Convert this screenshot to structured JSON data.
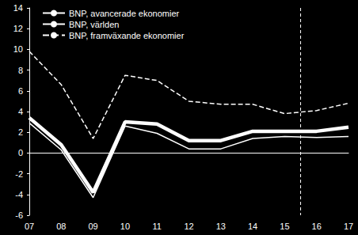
{
  "chart_data": {
    "type": "line",
    "categories": [
      "07",
      "08",
      "09",
      "10",
      "11",
      "12",
      "13",
      "14",
      "15",
      "16",
      "17"
    ],
    "series": [
      {
        "name": "BNP, avancerade ekonomier",
        "color": "#ffffff",
        "line_style": "thin",
        "values": [
          2.9,
          0.3,
          -4.3,
          2.6,
          1.9,
          0.4,
          0.4,
          1.4,
          1.6,
          1.5,
          1.6
        ]
      },
      {
        "name": "BNP, världen",
        "color": "#ffffff",
        "line_style": "thick",
        "values": [
          3.4,
          0.8,
          -3.8,
          3.0,
          2.8,
          1.2,
          1.2,
          2.1,
          2.1,
          2.1,
          2.5
        ]
      },
      {
        "name": "BNP, framväxande ekonomier",
        "color": "#ffffff",
        "line_style": "dashed",
        "values": [
          9.8,
          6.6,
          1.4,
          7.5,
          7.0,
          5.0,
          4.7,
          4.7,
          3.8,
          4.1,
          4.8
        ]
      }
    ],
    "ylim": [
      -6,
      14
    ],
    "yticks": [
      -6,
      -4,
      -2,
      0,
      2,
      4,
      6,
      8,
      10,
      12,
      14
    ],
    "grid": false,
    "legend": "top-left"
  }
}
